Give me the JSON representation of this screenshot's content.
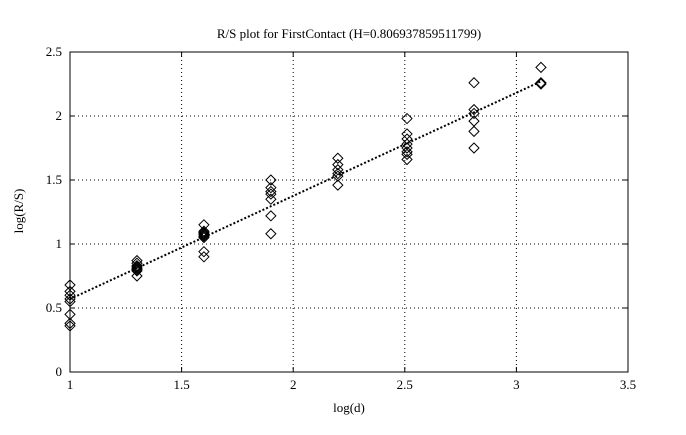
{
  "chart_data": {
    "type": "scatter",
    "title": "R/S plot for FirstContact (H=0.806937859511799)",
    "xlabel": "log(d)",
    "ylabel": "log(R/S)",
    "xlim": [
      1,
      3.5
    ],
    "ylim": [
      0,
      2.5
    ],
    "x_ticks": [
      1,
      1.5,
      2,
      2.5,
      3,
      3.5
    ],
    "x_tick_labels": [
      "1",
      "1.5",
      "2",
      "2.5",
      "3",
      "3.5"
    ],
    "y_ticks": [
      0,
      0.5,
      1,
      1.5,
      2,
      2.5
    ],
    "y_tick_labels": [
      "0",
      "0.5",
      "1",
      "1.5",
      "2",
      "2.5"
    ],
    "grid": true,
    "grid_style": "dotted",
    "marker": "diamond",
    "colors": {
      "marker": "#000000",
      "line": "#000000",
      "grid": "#000000"
    },
    "points": [
      [
        1.0,
        0.68
      ],
      [
        1.0,
        0.63
      ],
      [
        1.0,
        0.6
      ],
      [
        1.0,
        0.57
      ],
      [
        1.0,
        0.55
      ],
      [
        1.0,
        0.45
      ],
      [
        1.0,
        0.38
      ],
      [
        1.0,
        0.36
      ],
      [
        1.3,
        0.87
      ],
      [
        1.3,
        0.85
      ],
      [
        1.3,
        0.83
      ],
      [
        1.3,
        0.82
      ],
      [
        1.3,
        0.81
      ],
      [
        1.3,
        0.8
      ],
      [
        1.3,
        0.79
      ],
      [
        1.3,
        0.75
      ],
      [
        1.6,
        1.15
      ],
      [
        1.6,
        1.1
      ],
      [
        1.6,
        1.09
      ],
      [
        1.6,
        1.08
      ],
      [
        1.6,
        1.07
      ],
      [
        1.6,
        1.06
      ],
      [
        1.6,
        1.05
      ],
      [
        1.6,
        0.94
      ],
      [
        1.6,
        0.9
      ],
      [
        1.9,
        1.5
      ],
      [
        1.9,
        1.44
      ],
      [
        1.9,
        1.41
      ],
      [
        1.9,
        1.39
      ],
      [
        1.9,
        1.35
      ],
      [
        1.9,
        1.22
      ],
      [
        1.9,
        1.08
      ],
      [
        2.2,
        1.67
      ],
      [
        2.2,
        1.62
      ],
      [
        2.2,
        1.58
      ],
      [
        2.2,
        1.55
      ],
      [
        2.2,
        1.53
      ],
      [
        2.2,
        1.46
      ],
      [
        2.51,
        1.98
      ],
      [
        2.51,
        1.86
      ],
      [
        2.51,
        1.82
      ],
      [
        2.51,
        1.78
      ],
      [
        2.51,
        1.75
      ],
      [
        2.51,
        1.72
      ],
      [
        2.51,
        1.7
      ],
      [
        2.51,
        1.66
      ],
      [
        2.81,
        2.26
      ],
      [
        2.81,
        2.05
      ],
      [
        2.81,
        2.02
      ],
      [
        2.81,
        1.96
      ],
      [
        2.81,
        1.88
      ],
      [
        2.81,
        1.75
      ],
      [
        3.11,
        2.38
      ],
      [
        3.11,
        2.26
      ],
      [
        3.11,
        2.25
      ]
    ],
    "fit_line": {
      "x": [
        1.0,
        3.11
      ],
      "y": [
        0.57,
        2.27
      ],
      "style": "dotted"
    }
  }
}
